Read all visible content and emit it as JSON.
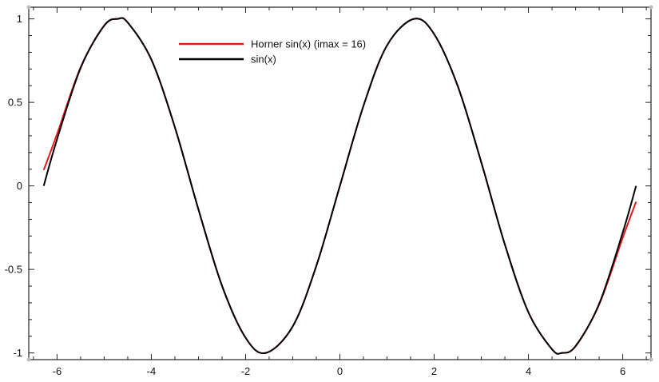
{
  "chart_data": {
    "type": "line",
    "xlim": [
      -6.6,
      6.6
    ],
    "ylim": [
      -1.04,
      1.07
    ],
    "grid": false,
    "legend_position": "top-center",
    "x_ticks": [
      -6,
      -4,
      -2,
      0,
      2,
      4,
      6
    ],
    "y_ticks": [
      1,
      0.5,
      0,
      -0.5,
      -1
    ],
    "x_tick_labels": [
      "-6",
      "-4",
      "-2",
      "0",
      "2",
      "4",
      "6"
    ],
    "y_tick_labels": [
      "1",
      "0.5",
      "0",
      "-0.5",
      "-1"
    ],
    "legend": [
      {
        "label": "Horner sin(x) (imax = 16)",
        "color": "#e31a1c"
      },
      {
        "label": "sin(x)",
        "color": "#000000"
      }
    ],
    "series": [
      {
        "name": "Horner sin(x) (imax = 16)",
        "color": "#e31a1c",
        "x": [
          -6.283,
          -6.0,
          -5.5,
          -5.0,
          -4.712,
          -4.5,
          -4.0,
          -3.5,
          -3.0,
          -2.5,
          -2.0,
          -1.571,
          -1.0,
          -0.5,
          0.0,
          0.5,
          1.0,
          1.571,
          2.0,
          2.5,
          3.0,
          3.5,
          4.0,
          4.5,
          4.712,
          5.0,
          5.5,
          6.0,
          6.283
        ],
        "y": [
          0.095,
          0.31,
          0.71,
          0.96,
          1.0,
          0.978,
          0.757,
          0.351,
          -0.141,
          -0.598,
          -0.909,
          -1.0,
          -0.841,
          -0.479,
          0.0,
          0.479,
          0.841,
          1.0,
          0.909,
          0.598,
          0.141,
          -0.351,
          -0.757,
          -0.978,
          -1.0,
          -0.96,
          -0.71,
          -0.31,
          -0.095
        ]
      },
      {
        "name": "sin(x)",
        "color": "#000000",
        "x": [
          -6.283,
          -6.0,
          -5.5,
          -5.0,
          -4.712,
          -4.5,
          -4.0,
          -3.5,
          -3.0,
          -2.5,
          -2.0,
          -1.571,
          -1.0,
          -0.5,
          0.0,
          0.5,
          1.0,
          1.571,
          2.0,
          2.5,
          3.0,
          3.5,
          4.0,
          4.5,
          4.712,
          5.0,
          5.5,
          6.0,
          6.283
        ],
        "y": [
          0.0,
          0.279,
          0.706,
          0.959,
          1.0,
          0.978,
          0.757,
          0.351,
          -0.141,
          -0.598,
          -0.909,
          -1.0,
          -0.841,
          -0.479,
          0.0,
          0.479,
          0.841,
          1.0,
          0.909,
          0.598,
          0.141,
          -0.351,
          -0.757,
          -0.978,
          -1.0,
          -0.959,
          -0.706,
          -0.279,
          0.0
        ]
      }
    ]
  }
}
